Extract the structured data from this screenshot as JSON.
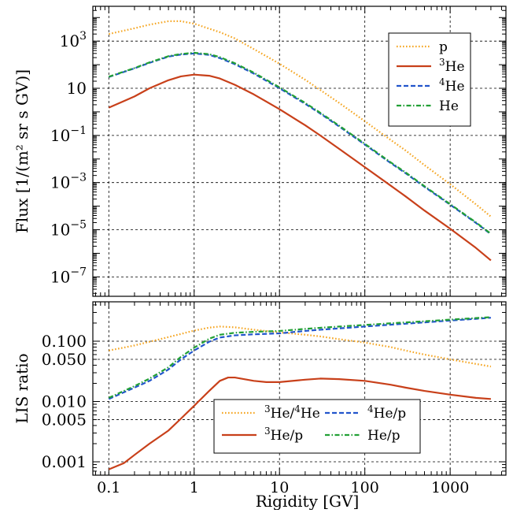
{
  "chart_data": [
    {
      "type": "line",
      "ylabel": "Flux [1/(m² sr s GV)]",
      "xscale": "log",
      "yscale": "log",
      "xlim": [
        0.065,
        4500
      ],
      "ylim": [
        1.5e-08,
        30000.0
      ],
      "grid": true,
      "legend_position": "upper-right",
      "x_ticks": [
        {
          "value": 0.1,
          "label": "0.1"
        },
        {
          "value": 1,
          "label": "1"
        },
        {
          "value": 10,
          "label": "10"
        },
        {
          "value": 100,
          "label": "100"
        },
        {
          "value": 1000,
          "label": "1000"
        }
      ],
      "y_ticks": [
        {
          "value": 1000,
          "base": "10",
          "exp": "3"
        },
        {
          "value": 10,
          "base": "10",
          "exp": ""
        },
        {
          "value": 0.1,
          "base": "10",
          "exp": "−1"
        },
        {
          "value": 0.001,
          "base": "10",
          "exp": "−3"
        },
        {
          "value": 1e-05,
          "base": "10",
          "exp": "−5"
        },
        {
          "value": 1e-07,
          "base": "10",
          "exp": "−7"
        }
      ],
      "series": [
        {
          "name": "p",
          "legend_base": "p",
          "legend_sup": "",
          "legend_base2": "",
          "legend_sup2": "",
          "legend_tail": "",
          "color": "#f5a623",
          "style": "dotted",
          "x": [
            0.1,
            0.2,
            0.3,
            0.5,
            0.7,
            1,
            2,
            3,
            5,
            10,
            20,
            30,
            50,
            100,
            200,
            300,
            500,
            1000,
            2000,
            3000
          ],
          "y": [
            2000,
            3500,
            5000,
            7000,
            7000,
            5500,
            2400,
            1300,
            460,
            110,
            23,
            8.5,
            2.4,
            0.4,
            0.065,
            0.023,
            0.0055,
            0.00085,
            0.00012,
            3.6e-05
          ]
        },
        {
          "name": "3He",
          "legend_base": "",
          "legend_sup": "3",
          "legend_base2": "He",
          "legend_sup2": "",
          "legend_tail": "",
          "color": "#c8401a",
          "style": "solid",
          "x": [
            0.1,
            0.2,
            0.3,
            0.5,
            0.7,
            1,
            1.5,
            2,
            3,
            5,
            10,
            20,
            30,
            50,
            100,
            200,
            300,
            500,
            1000,
            2000,
            3000
          ],
          "y": [
            1.5,
            4.5,
            10,
            22,
            32,
            38,
            34,
            26,
            14,
            5.5,
            1.3,
            0.27,
            0.1,
            0.027,
            0.0045,
            0.00075,
            0.00026,
            6.5e-05,
            1.1e-05,
            1.7e-06,
            5e-07
          ]
        },
        {
          "name": "4He",
          "legend_base": "",
          "legend_sup": "4",
          "legend_base2": "He",
          "legend_sup2": "",
          "legend_tail": "",
          "color": "#2255cc",
          "style": "dashed",
          "x": [
            0.1,
            0.2,
            0.3,
            0.5,
            0.7,
            1,
            1.5,
            2,
            3,
            5,
            10,
            20,
            30,
            50,
            100,
            200,
            300,
            500,
            1000,
            2000,
            3000
          ],
          "y": [
            30,
            70,
            120,
            220,
            270,
            300,
            260,
            190,
            105,
            42,
            10,
            2.2,
            0.85,
            0.24,
            0.041,
            0.0068,
            0.0025,
            0.00066,
            0.000115,
            1.95e-05,
            6.5e-06
          ]
        },
        {
          "name": "He",
          "legend_base": "He",
          "legend_sup": "",
          "legend_base2": "",
          "legend_sup2": "",
          "legend_tail": "",
          "color": "#22a035",
          "style": "dashdot",
          "x": [
            0.1,
            0.2,
            0.3,
            0.5,
            0.7,
            1,
            1.5,
            2,
            3,
            5,
            10,
            20,
            30,
            50,
            100,
            200,
            300,
            500,
            1000,
            2000,
            3000
          ],
          "y": [
            31,
            72,
            125,
            230,
            285,
            320,
            280,
            210,
            115,
            46,
            11,
            2.4,
            0.92,
            0.26,
            0.044,
            0.0073,
            0.0027,
            0.0007,
            0.000122,
            2.05e-05,
            6.8e-06
          ]
        }
      ]
    },
    {
      "type": "line",
      "xlabel": "Rigidity [GV]",
      "ylabel": "LIS ratio",
      "xscale": "log",
      "yscale": "log",
      "xlim": [
        0.065,
        4500
      ],
      "ylim": [
        0.0006,
        0.45
      ],
      "grid": true,
      "legend_position": "lower-right",
      "x_ticks": [
        {
          "value": 0.1,
          "label": "0.1"
        },
        {
          "value": 1,
          "label": "1"
        },
        {
          "value": 10,
          "label": "10"
        },
        {
          "value": 100,
          "label": "100"
        },
        {
          "value": 1000,
          "label": "1000"
        }
      ],
      "y_ticks": [
        {
          "value": 0.1,
          "label": "0.100"
        },
        {
          "value": 0.05,
          "label": "0.050"
        },
        {
          "value": 0.01,
          "label": "0.010"
        },
        {
          "value": 0.005,
          "label": "0.005"
        },
        {
          "value": 0.001,
          "label": "0.001"
        }
      ],
      "series": [
        {
          "name": "3He/4He",
          "legend_base": "",
          "legend_sup": "3",
          "legend_base2": "He/",
          "legend_sup2": "4",
          "legend_tail": "He",
          "color": "#f5a623",
          "style": "dotted",
          "x": [
            0.1,
            0.2,
            0.3,
            0.5,
            0.7,
            1,
            1.5,
            2,
            3,
            5,
            10,
            20,
            30,
            50,
            100,
            200,
            300,
            500,
            1000,
            2000,
            3000
          ],
          "y": [
            0.07,
            0.085,
            0.098,
            0.117,
            0.132,
            0.15,
            0.168,
            0.175,
            0.17,
            0.155,
            0.14,
            0.128,
            0.12,
            0.108,
            0.095,
            0.08,
            0.07,
            0.06,
            0.05,
            0.042,
            0.038
          ]
        },
        {
          "name": "3He/p",
          "legend_base": "",
          "legend_sup": "3",
          "legend_base2": "He/p",
          "legend_sup2": "",
          "legend_tail": "",
          "color": "#c8401a",
          "style": "solid",
          "x": [
            0.1,
            0.15,
            0.2,
            0.3,
            0.5,
            0.7,
            1,
            1.5,
            2,
            2.5,
            3,
            5,
            7,
            10,
            20,
            30,
            50,
            100,
            200,
            300,
            500,
            1000,
            2000,
            3000
          ],
          "y": [
            0.00075,
            0.00095,
            0.0013,
            0.002,
            0.0033,
            0.0052,
            0.0085,
            0.015,
            0.022,
            0.025,
            0.025,
            0.022,
            0.021,
            0.021,
            0.023,
            0.024,
            0.0235,
            0.022,
            0.019,
            0.017,
            0.015,
            0.013,
            0.0115,
            0.011
          ]
        },
        {
          "name": "4He/p",
          "legend_base": "",
          "legend_sup": "4",
          "legend_base2": "He/p",
          "legend_sup2": "",
          "legend_tail": "",
          "color": "#2255cc",
          "style": "dashed",
          "x": [
            0.1,
            0.2,
            0.3,
            0.5,
            0.7,
            1,
            1.5,
            2,
            3,
            5,
            10,
            20,
            30,
            50,
            100,
            200,
            300,
            500,
            1000,
            2000,
            3000
          ],
          "y": [
            0.011,
            0.017,
            0.022,
            0.034,
            0.05,
            0.07,
            0.098,
            0.115,
            0.125,
            0.13,
            0.135,
            0.148,
            0.155,
            0.163,
            0.175,
            0.188,
            0.195,
            0.205,
            0.22,
            0.235,
            0.245
          ]
        },
        {
          "name": "He/p",
          "legend_base": "He/p",
          "legend_sup": "",
          "legend_base2": "",
          "legend_sup2": "",
          "legend_tail": "",
          "color": "#22a035",
          "style": "dashdot",
          "x": [
            0.1,
            0.2,
            0.3,
            0.5,
            0.7,
            1,
            1.5,
            2,
            3,
            5,
            10,
            20,
            30,
            50,
            100,
            200,
            300,
            500,
            1000,
            2000,
            3000
          ],
          "y": [
            0.0115,
            0.018,
            0.024,
            0.037,
            0.055,
            0.078,
            0.11,
            0.128,
            0.138,
            0.143,
            0.148,
            0.16,
            0.167,
            0.175,
            0.186,
            0.198,
            0.205,
            0.214,
            0.228,
            0.242,
            0.25
          ]
        }
      ]
    }
  ]
}
